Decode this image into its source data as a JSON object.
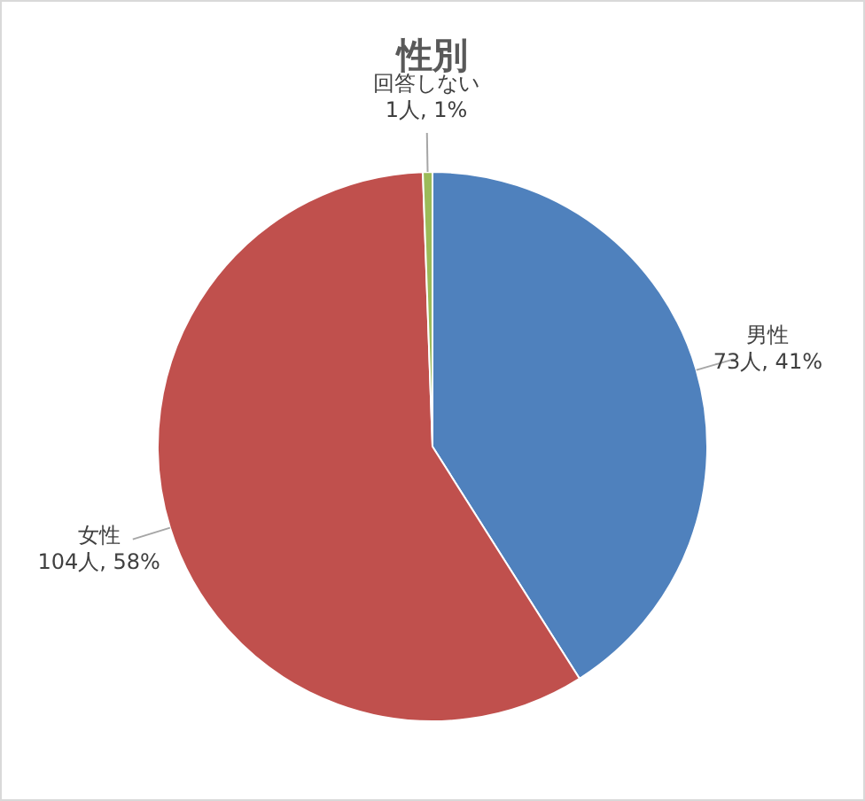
{
  "chart_data": {
    "type": "pie",
    "title": "性別",
    "categories": [
      "男性",
      "女性",
      "回答しない"
    ],
    "values": [
      73,
      104,
      1
    ],
    "colors": [
      "#4f81bd",
      "#c0504d",
      "#9bbb59"
    ],
    "value_labels": [
      "73人, 41%",
      "104人, 58%",
      "1人, 1%"
    ]
  }
}
